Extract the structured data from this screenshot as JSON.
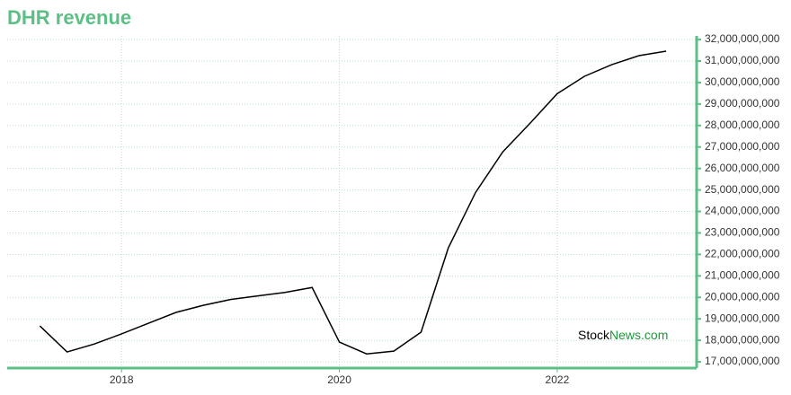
{
  "chart_data": {
    "type": "line",
    "title": "DHR revenue",
    "watermark": [
      "Stock",
      "News.com"
    ],
    "x": [
      2017.25,
      2017.5,
      2017.75,
      2018.0,
      2018.25,
      2018.5,
      2018.75,
      2019.0,
      2019.25,
      2019.5,
      2019.75,
      2020.0,
      2020.25,
      2020.5,
      2020.75,
      2021.0,
      2021.25,
      2021.5,
      2021.75,
      2022.0,
      2022.25,
      2022.5,
      2022.75,
      2023.0
    ],
    "series": [
      {
        "name": "DHR revenue",
        "color": "#000000",
        "values": [
          18670000000,
          17460000000,
          17830000000,
          18300000000,
          18800000000,
          19300000000,
          19630000000,
          19900000000,
          20070000000,
          20230000000,
          20460000000,
          17920000000,
          17370000000,
          17500000000,
          18380000000,
          22300000000,
          24880000000,
          26770000000,
          28100000000,
          29480000000,
          30290000000,
          30830000000,
          31250000000,
          31460000000
        ]
      }
    ],
    "xlim": [
      2016.95,
      2023.28
    ],
    "xticks": [
      2018,
      2020,
      2022
    ],
    "ylim": [
      16710000000,
      32170000000
    ],
    "yticks": [
      {
        "value": 17000000000,
        "label": "17,000,000,000"
      },
      {
        "value": 18000000000,
        "label": "18,000,000,000"
      },
      {
        "value": 19000000000,
        "label": "19,000,000,000"
      },
      {
        "value": 20000000000,
        "label": "20,000,000,000"
      },
      {
        "value": 21000000000,
        "label": "21,000,000,000"
      },
      {
        "value": 22000000000,
        "label": "22,000,000,000"
      },
      {
        "value": 23000000000,
        "label": "23,000,000,000"
      },
      {
        "value": 24000000000,
        "label": "24,000,000,000"
      },
      {
        "value": 25000000000,
        "label": "25,000,000,000"
      },
      {
        "value": 26000000000,
        "label": "26,000,000,000"
      },
      {
        "value": 27000000000,
        "label": "27,000,000,000"
      },
      {
        "value": 28000000000,
        "label": "28,000,000,000"
      },
      {
        "value": 29000000000,
        "label": "29,000,000,000"
      },
      {
        "value": 30000000000,
        "label": "30,000,000,000"
      },
      {
        "value": 31000000000,
        "label": "31,000,000,000"
      },
      {
        "value": 32000000000,
        "label": "32,000,000,000"
      }
    ],
    "grid": true,
    "axis_color": "#5cbf85"
  }
}
